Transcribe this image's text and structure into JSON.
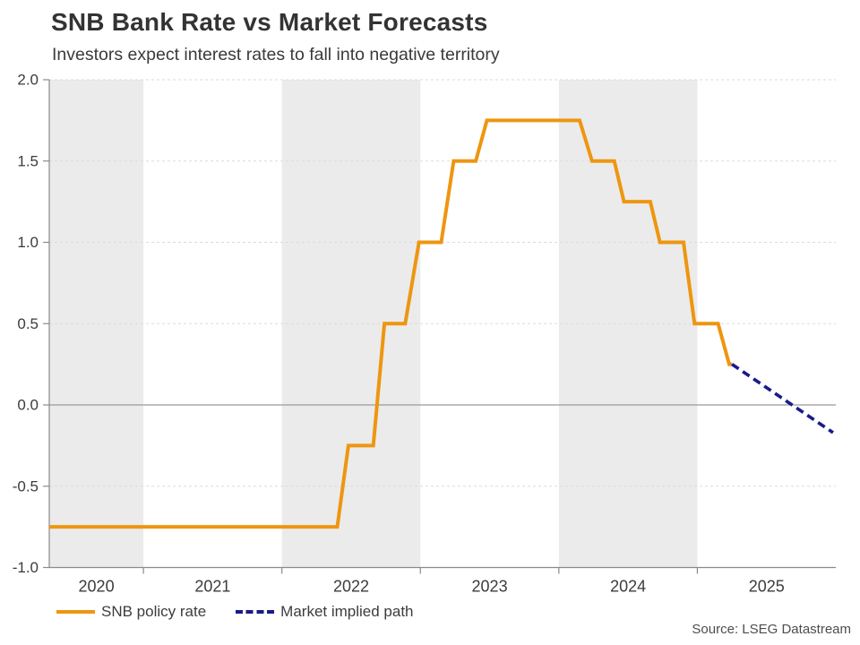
{
  "header": {
    "title": "SNB Bank Rate vs Market Forecasts",
    "subtitle": "Investors expect interest rates to fall into negative territory"
  },
  "footer": {
    "source": "Source: LSEG Datastream"
  },
  "colors": {
    "policy_rate": "#EE9610",
    "implied_path": "#1A1A8C",
    "band": "#EBEBEB",
    "grid": "#DBDBDB",
    "zero_line": "#999999",
    "axis": "#8A8A8A",
    "tick_text": "#3C3C3C"
  },
  "legend": {
    "items": [
      {
        "label": "SNB policy rate",
        "style": "solid",
        "color": "#EE9610"
      },
      {
        "label": "Market implied path",
        "style": "dashed",
        "color": "#1A1A8C"
      }
    ]
  },
  "chart_data": {
    "type": "line",
    "title": "SNB Bank Rate vs Market Forecasts",
    "subtitle": "Investors expect interest rates to fall into negative territory",
    "xlabel": "",
    "ylabel": "",
    "x_range": [
      2020.32,
      2026.0
    ],
    "y_range": [
      -1.0,
      2.0
    ],
    "y_ticks": [
      2.0,
      1.5,
      1.0,
      0.5,
      0.0,
      -0.5,
      -1.0
    ],
    "y_tick_labels": [
      "2.0",
      "1.5",
      "1.0",
      "0.5",
      "0.0",
      "-0.5",
      "-1.0"
    ],
    "x_boundary_ticks": [
      2021,
      2022,
      2023,
      2024,
      2025
    ],
    "x_labels": [
      "2020",
      "2021",
      "2022",
      "2023",
      "2024",
      "2025"
    ],
    "shaded_spans": [
      [
        2020.32,
        2021
      ],
      [
        2022,
        2023
      ],
      [
        2024,
        2025
      ]
    ],
    "grid": "horizontal dashed lines every 0.5; solid line at 0.0",
    "legend_position": "bottom-left",
    "series": [
      {
        "name": "SNB policy rate",
        "style": "solid",
        "color": "#EE9610",
        "points": [
          [
            2020.32,
            -0.75
          ],
          [
            2022.4,
            -0.75
          ],
          [
            2022.48,
            -0.25
          ],
          [
            2022.66,
            -0.25
          ],
          [
            2022.74,
            0.5
          ],
          [
            2022.89,
            0.5
          ],
          [
            2022.99,
            1.0
          ],
          [
            2023.15,
            1.0
          ],
          [
            2023.24,
            1.5
          ],
          [
            2023.4,
            1.5
          ],
          [
            2023.48,
            1.75
          ],
          [
            2024.15,
            1.75
          ],
          [
            2024.24,
            1.5
          ],
          [
            2024.4,
            1.5
          ],
          [
            2024.47,
            1.25
          ],
          [
            2024.66,
            1.25
          ],
          [
            2024.73,
            1.0
          ],
          [
            2024.9,
            1.0
          ],
          [
            2024.98,
            0.5
          ],
          [
            2025.15,
            0.5
          ],
          [
            2025.23,
            0.25
          ],
          [
            2025.25,
            0.25
          ]
        ]
      },
      {
        "name": "Market implied path",
        "style": "dashed",
        "color": "#1A1A8C",
        "points": [
          [
            2025.25,
            0.25
          ],
          [
            2025.98,
            -0.17
          ]
        ]
      }
    ]
  }
}
